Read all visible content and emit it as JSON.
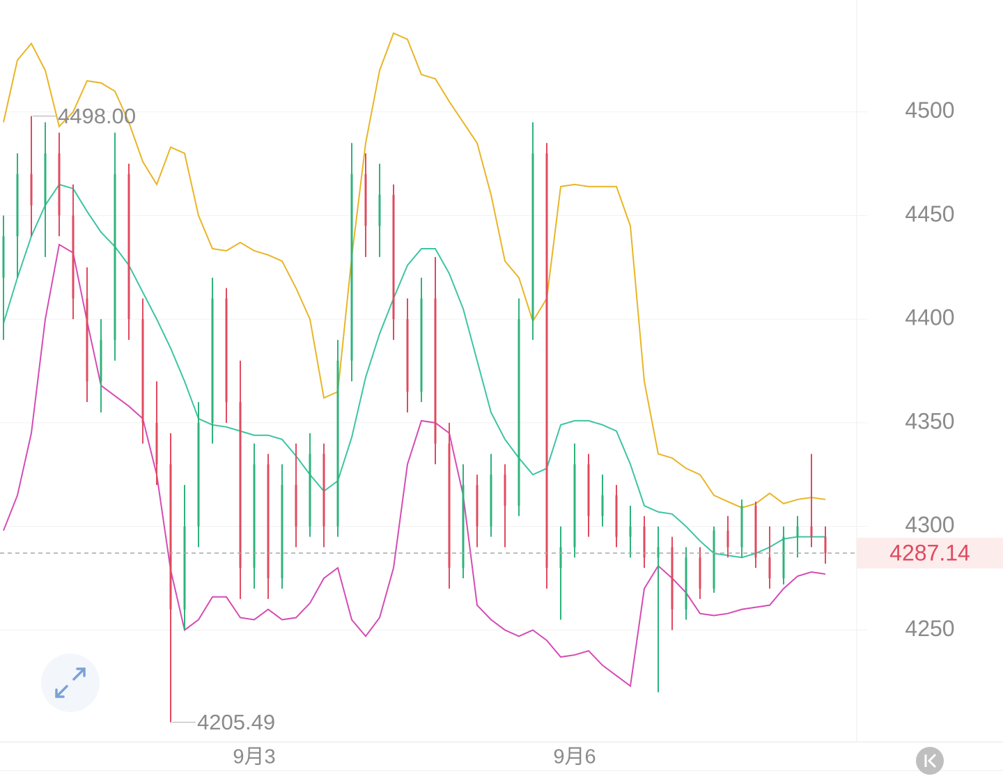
{
  "chart_data": {
    "type": "candlestick",
    "categories": [
      null,
      null,
      null,
      null,
      null,
      null,
      null,
      null,
      null,
      null,
      null,
      null,
      null,
      null,
      null,
      null,
      null,
      null,
      "9月3",
      null,
      null,
      null,
      null,
      null,
      null,
      null,
      null,
      null,
      null,
      null,
      null,
      null,
      null,
      null,
      null,
      null,
      null,
      null,
      null,
      null,
      null,
      "9月6",
      null,
      null,
      null,
      null,
      null,
      null,
      null,
      null,
      null,
      null,
      null,
      null,
      null,
      null,
      null,
      null,
      null,
      null
    ],
    "open": [
      4420,
      4440,
      4470,
      4455,
      4480,
      4450,
      4410,
      4370,
      4390,
      4470,
      4400,
      4350,
      4330,
      4260,
      4300,
      4350,
      4410,
      4360,
      4280,
      4330,
      4275,
      4320,
      4300,
      4335,
      4300,
      4380,
      4470,
      4445,
      4460,
      4400,
      4365,
      4410,
      4340,
      4280,
      4320,
      4300,
      4325,
      4310,
      4400,
      4480,
      4280,
      4290,
      4330,
      4305,
      4315,
      4295,
      4300,
      4285,
      4290,
      4260,
      4285,
      4270,
      4298,
      4290,
      4310,
      4285,
      4275,
      4295,
      4300,
      4295
    ],
    "high": [
      4450,
      4480,
      4498,
      4495,
      4490,
      4465,
      4425,
      4400,
      4490,
      4475,
      4410,
      4370,
      4345,
      4320,
      4360,
      4420,
      4415,
      4380,
      4340,
      4335,
      4330,
      4340,
      4345,
      4340,
      4390,
      4485,
      4480,
      4475,
      4465,
      4410,
      4420,
      4430,
      4350,
      4330,
      4325,
      4335,
      4330,
      4410,
      4495,
      4485,
      4300,
      4340,
      4335,
      4325,
      4320,
      4310,
      4305,
      4300,
      4295,
      4290,
      4290,
      4300,
      4305,
      4313,
      4312,
      4300,
      4300,
      4305,
      4335,
      4300
    ],
    "low": [
      4390,
      4420,
      4440,
      4430,
      4440,
      4400,
      4360,
      4355,
      4380,
      4390,
      4340,
      4320,
      4205.49,
      4250,
      4290,
      4340,
      4350,
      4265,
      4270,
      4265,
      4270,
      4290,
      4295,
      4290,
      4295,
      4370,
      4430,
      4430,
      4390,
      4355,
      4360,
      4330,
      4270,
      4275,
      4290,
      4295,
      4290,
      4305,
      4390,
      4270,
      4255,
      4285,
      4295,
      4300,
      4290,
      4285,
      4280,
      4220,
      4250,
      4255,
      4265,
      4268,
      4285,
      4285,
      4280,
      4270,
      4272,
      4285,
      4290,
      4282
    ],
    "close": [
      4440,
      4470,
      4455,
      4480,
      4450,
      4410,
      4370,
      4390,
      4470,
      4400,
      4350,
      4330,
      4260,
      4300,
      4350,
      4410,
      4360,
      4280,
      4330,
      4275,
      4320,
      4300,
      4335,
      4300,
      4380,
      4470,
      4445,
      4460,
      4400,
      4365,
      4410,
      4340,
      4280,
      4320,
      4300,
      4325,
      4310,
      4400,
      4480,
      4280,
      4290,
      4330,
      4305,
      4315,
      4295,
      4300,
      4285,
      4290,
      4260,
      4285,
      4270,
      4298,
      4290,
      4310,
      4285,
      4275,
      4295,
      4300,
      4295,
      4287.14
    ],
    "up_color": "#2db37a",
    "down_color": "#e04a5f",
    "series": [
      {
        "color": "#e9b526",
        "values": [
          4495,
          4525,
          4533,
          4520,
          4493,
          4500,
          4515,
          4514,
          4510,
          4495,
          4476,
          4465,
          4483,
          4480,
          4450,
          4434,
          4433,
          4437,
          4433,
          4431,
          4428,
          4415,
          4400,
          4362,
          4365,
          4430,
          4485,
          4520,
          4538,
          4535,
          4518,
          4516,
          4505,
          4495,
          4485,
          4460,
          4428,
          4420,
          4399,
          4410,
          4464,
          4465,
          4464,
          4464,
          4464,
          4445,
          4370,
          4335,
          4333,
          4328,
          4325,
          4315,
          4312,
          4309,
          4311,
          4316,
          4311,
          4313,
          4314,
          4313
        ]
      },
      {
        "color": "#3cc4a2",
        "values": [
          4398,
          4420,
          4440,
          4455,
          4465,
          4463,
          4452,
          4442,
          4435,
          4426,
          4413,
          4400,
          4386,
          4370,
          4352,
          4349,
          4348,
          4346,
          4344,
          4344,
          4342,
          4334,
          4325,
          4317,
          4322,
          4343,
          4372,
          4393,
          4410,
          4426,
          4434,
          4434,
          4422,
          4405,
          4380,
          4355,
          4342,
          4333,
          4325,
          4328,
          4349,
          4351,
          4351,
          4349,
          4346,
          4330,
          4310,
          4307,
          4306,
          4300,
          4293,
          4287,
          4286,
          4285,
          4287,
          4290,
          4294,
          4295,
          4295,
          4295
        ]
      },
      {
        "color": "#d54bb4",
        "values": [
          4298,
          4315,
          4345,
          4400,
          4436,
          4432,
          4399,
          4368,
          4363,
          4358,
          4352,
          4325,
          4279,
          4250,
          4255,
          4266,
          4266,
          4256,
          4255,
          4260,
          4255,
          4256,
          4263,
          4275,
          4280,
          4255,
          4247,
          4256,
          4280,
          4330,
          4351,
          4350,
          4345,
          4315,
          4262,
          4255,
          4250,
          4247,
          4250,
          4245,
          4237,
          4238,
          4240,
          4233,
          4228,
          4223,
          4270,
          4281,
          4275,
          4268,
          4258,
          4257,
          4258,
          4260,
          4261,
          4262,
          4270,
          4276,
          4278,
          4277
        ]
      }
    ],
    "ylim": [
      4196,
      4554
    ],
    "yticks": [
      4250,
      4300,
      4350,
      4400,
      4450,
      4500
    ],
    "grid": true,
    "annotations": [
      {
        "value": 4498,
        "label": "4498.00"
      },
      {
        "value": 4205.49,
        "label": "4205.49"
      }
    ],
    "last_price": 4287.14
  }
}
